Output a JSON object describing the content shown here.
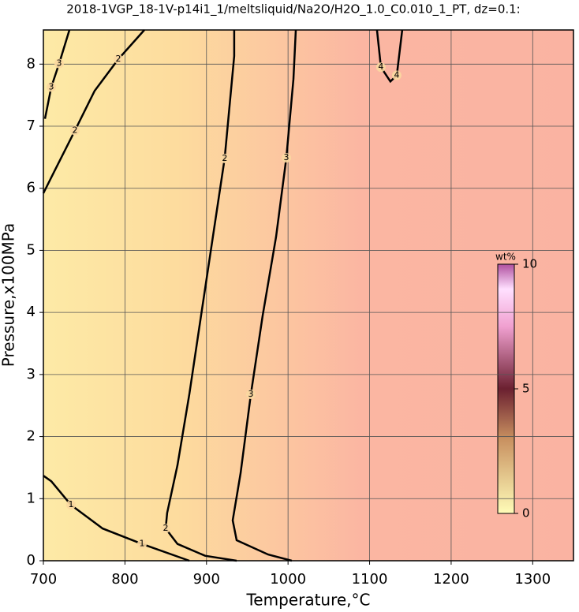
{
  "chart_data": {
    "type": "contour",
    "title": "2018-1VGP_18-1V-p14i1_1/meltsliquid/Na2O/H2O_1.0_C0.010_1_PT, dz=0.1:",
    "xlabel": "Temperature,°C",
    "ylabel": "Pressure,x100MPa",
    "xlim": [
      700,
      1350
    ],
    "ylim": [
      0,
      8.55
    ],
    "xticks": [
      700,
      800,
      900,
      1000,
      1100,
      1200,
      1300
    ],
    "yticks": [
      0,
      1,
      2,
      3,
      4,
      5,
      6,
      7,
      8
    ],
    "grid": true,
    "colorbar": {
      "label": "wt%",
      "lim": [
        0,
        10
      ],
      "ticks": [
        0,
        5,
        10
      ]
    },
    "contours": [
      {
        "level": 3,
        "x": [
          731.9,
          719.3,
          709.7,
          701.9
        ],
        "y": [
          8.55,
          8.01,
          7.63,
          7.12
        ]
      },
      {
        "level": 2,
        "x": [
          823.8,
          791.9,
          762.9,
          738.7,
          714.5,
          700
        ],
        "y": [
          8.55,
          8.08,
          7.57,
          6.93,
          6.3,
          5.92
        ]
      },
      {
        "level": 2,
        "x": [
          934,
          934,
          922.3,
          907.9,
          893.4,
          878.9,
          864.4,
          851.8,
          849.9,
          864.4,
          898.3,
          937
        ],
        "y": [
          8.55,
          8.13,
          6.48,
          5.22,
          3.95,
          2.68,
          1.54,
          0.77,
          0.52,
          0.27,
          0.08,
          0
        ]
      },
      {
        "level": 3,
        "x": [
          1009.5,
          1006.6,
          997.9,
          985.3,
          968.9,
          954.4,
          941.8,
          932.1,
          937,
          975.6,
          1004.6
        ],
        "y": [
          8.55,
          7.76,
          6.49,
          5.22,
          3.95,
          2.68,
          1.41,
          0.65,
          0.33,
          0.1,
          0
        ]
      },
      {
        "level": 4,
        "x": [
          1109.1,
          1113.9,
          1125.5,
          1133.3,
          1140
        ],
        "y": [
          8.55,
          7.95,
          7.72,
          7.82,
          8.55
        ]
      },
      {
        "level": 1,
        "x": [
          700,
          709.7,
          733.8,
          772.5,
          820.9,
          878.9
        ],
        "y": [
          1.37,
          1.28,
          0.9,
          0.52,
          0.27,
          0
        ]
      }
    ]
  }
}
